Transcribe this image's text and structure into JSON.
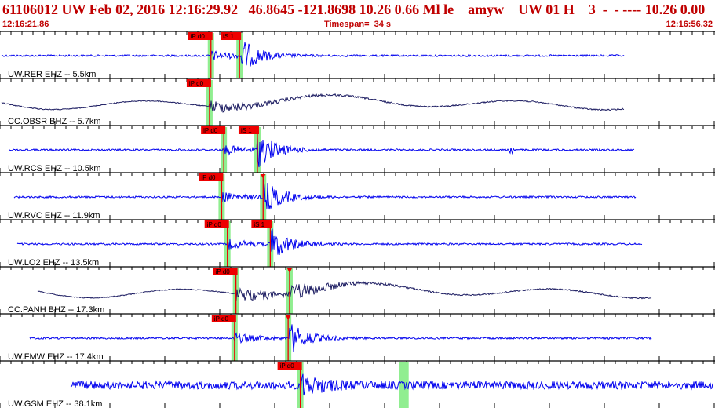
{
  "header": {
    "title": "61106012 UW Feb 02, 2016 12:16:29.92   46.8645 -121.8698 10.26 0.66 Ml le    amyw    UW 01 H    3  -  - ---- 10.26 0.00",
    "start_time": "12:16:21.86",
    "timespan": "Timespan=  34 s",
    "end_time": "12:16:56.32"
  },
  "colors": {
    "header_text": "#c00000",
    "trace_blue": "#0000ee",
    "trace_dark": "#1a1a60",
    "pick_box": "#ee0000",
    "pick_window": "#90ee90",
    "axis": "#000000"
  },
  "traces": [
    {
      "label": "UW.RER EHZ -- 5.5km",
      "color": "trace_blue",
      "style": "spiky",
      "picks": [
        {
          "label": "iP d0",
          "t": 0.295
        },
        {
          "label": "iS 1",
          "t": 0.335
        }
      ],
      "extra_windows": []
    },
    {
      "label": "CC.OBSR BHZ -- 5.7km",
      "color": "trace_dark",
      "style": "wavy",
      "picks": [
        {
          "label": "iP d0",
          "t": 0.293
        }
      ],
      "extra_windows": []
    },
    {
      "label": "UW.RCS EHZ -- 10.5km",
      "color": "trace_blue",
      "style": "spiky",
      "picks": [
        {
          "label": "iP d0",
          "t": 0.313
        },
        {
          "label": "iS 1",
          "t": 0.36
        }
      ],
      "extra_windows": []
    },
    {
      "label": "UW.RVC EHZ -- 11.9km",
      "color": "trace_blue",
      "style": "spiky",
      "picks": [
        {
          "label": "iP d0",
          "t": 0.31
        },
        {
          "label": "",
          "t": 0.368
        }
      ],
      "extra_windows": []
    },
    {
      "label": "UW.LO2 EHZ -- 13.5km",
      "color": "trace_blue",
      "style": "spiky",
      "picks": [
        {
          "label": "iP d0",
          "t": 0.318
        },
        {
          "label": "iS 1",
          "t": 0.378
        }
      ],
      "extra_windows": []
    },
    {
      "label": "CC.PANH BHZ -- 17.3km",
      "color": "trace_dark",
      "style": "wavy",
      "picks": [
        {
          "label": "iP d0",
          "t": 0.33
        },
        {
          "label": "",
          "t": 0.405
        }
      ],
      "extra_windows": []
    },
    {
      "label": "UW.FMW EHZ -- 17.4km",
      "color": "trace_blue",
      "style": "spiky",
      "picks": [
        {
          "label": "iP d0",
          "t": 0.328
        },
        {
          "label": "",
          "t": 0.403
        }
      ],
      "extra_windows": []
    },
    {
      "label": "UW.GSM EHZ -- 38.1km",
      "color": "trace_blue",
      "style": "noisy",
      "picks": [
        {
          "label": "iP d0",
          "t": 0.42
        }
      ],
      "extra_windows": [
        0.565
      ]
    }
  ]
}
